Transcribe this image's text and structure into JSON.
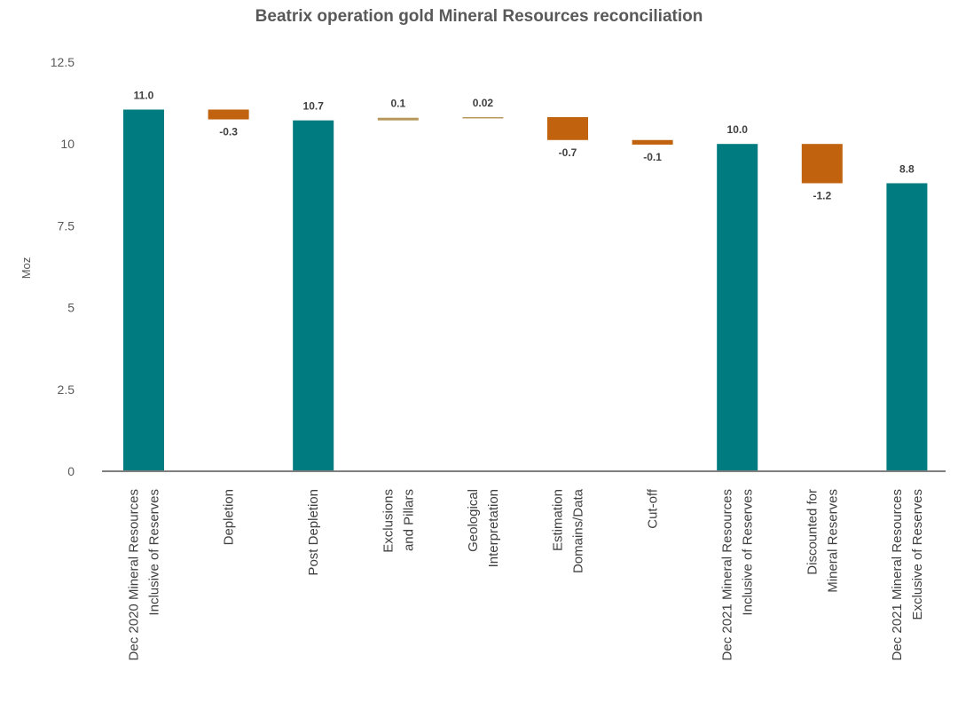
{
  "chart_data": {
    "type": "bar",
    "subtype": "waterfall",
    "title": "Beatrix operation gold Mineral Resources reconciliation",
    "xlabel": "",
    "ylabel": "Moz",
    "ylim": [
      0,
      12.5
    ],
    "yticks": [
      "0",
      "2.5",
      "5",
      "7.5",
      "10",
      "12.5"
    ],
    "ytick_values": [
      0,
      2.5,
      5,
      7.5,
      10,
      12.5
    ],
    "grid": false,
    "legend": "none",
    "colors": {
      "total": "#007B80",
      "decrease": "#C0620E",
      "increase": "#B5975A"
    },
    "bars": [
      {
        "category": [
          "Dec 2020 Mineral Resources",
          "Inclusive of Reserves"
        ],
        "kind": "total",
        "value": 11.05,
        "label": "11.0"
      },
      {
        "category": [
          "Depletion"
        ],
        "kind": "delta",
        "value": -0.3,
        "label": "-0.3"
      },
      {
        "category": [
          "Post Depletion"
        ],
        "kind": "total",
        "value": 10.72,
        "label": "10.7"
      },
      {
        "category": [
          "Exclusions",
          "and Pillars"
        ],
        "kind": "delta",
        "value": 0.08,
        "label": "0.1"
      },
      {
        "category": [
          "Geological",
          "Interpretation"
        ],
        "kind": "delta",
        "value": 0.02,
        "label": "0.02"
      },
      {
        "category": [
          "Estimation",
          "Domains/Data"
        ],
        "kind": "delta",
        "value": -0.7,
        "label": "-0.7"
      },
      {
        "category": [
          "Cut-off"
        ],
        "kind": "delta",
        "value": -0.14,
        "label": "-0.1"
      },
      {
        "category": [
          "Dec 2021 Mineral Resources",
          "Inclusive of Reserves"
        ],
        "kind": "total",
        "value": 10.0,
        "label": "10.0"
      },
      {
        "category": [
          "Discounted for",
          "Mineral Reserves"
        ],
        "kind": "delta",
        "value": -1.2,
        "label": "-1.2"
      },
      {
        "category": [
          "Dec 2021 Mineral Resources",
          "Exclusive of Reserves"
        ],
        "kind": "total",
        "value": 8.8,
        "label": "8.8"
      }
    ]
  }
}
